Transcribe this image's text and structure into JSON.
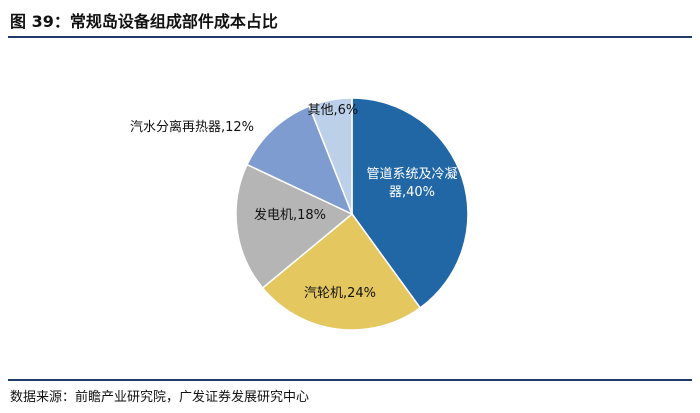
{
  "figure": {
    "title": "图 39：常规岛设备组成部件成本占比",
    "source": "数据来源：前瞻产业研究院，广发证券发展研究中心"
  },
  "chart_data": {
    "type": "pie",
    "title": "",
    "start_angle_deg": 0,
    "direction": "clockwise",
    "slices": [
      {
        "label": "管道系统及冷凝器",
        "value": 40,
        "display": "管道系统及冷凝\n器,40%",
        "color": "#2167a6",
        "text_color": "#ffffff"
      },
      {
        "label": "汽轮机",
        "value": 24,
        "display": "汽轮机,24%",
        "color": "#e4c75f",
        "text_color": "#111111"
      },
      {
        "label": "发电机",
        "value": 18,
        "display": "发电机,18%",
        "color": "#b5b5b5",
        "text_color": "#111111"
      },
      {
        "label": "汽水分离再热器",
        "value": 12,
        "display": "汽水分离再热器,12%",
        "color": "#7f9cd0",
        "text_color": "#111111"
      },
      {
        "label": "其他",
        "value": 6,
        "display": "其他,6%",
        "color": "#bdd0ea",
        "text_color": "#111111"
      }
    ]
  }
}
